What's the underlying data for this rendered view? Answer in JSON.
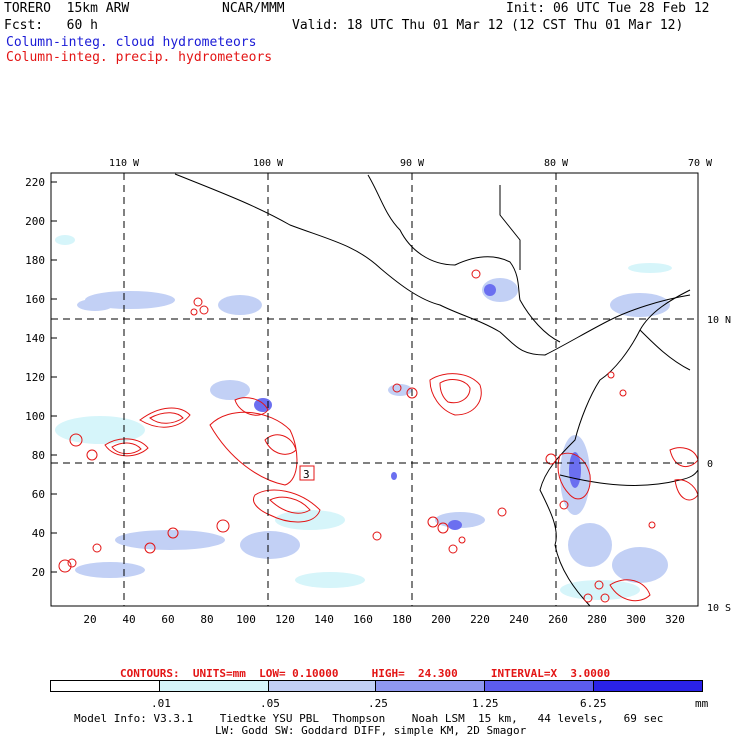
{
  "header": {
    "model": "TORERO  15km ARW",
    "org": "NCAR/MMM",
    "init": "Init: 06 UTC Tue 28 Feb 12",
    "fcst": "Fcst:   60 h",
    "valid": "Valid: 18 UTC Thu 01 Mar 12 (12 CST Thu 01 Mar 12)",
    "field1": "Column-integ. cloud hydrometeors",
    "field2": "Column-integ. precip. hydrometeors"
  },
  "axes": {
    "top_lon_labels": [
      "110 W",
      "100 W",
      "90 W",
      "80 W",
      "70 W"
    ],
    "right_lat_labels": [
      "10 N",
      "0",
      "10 S"
    ],
    "left_ticks": [
      "220",
      "200",
      "180",
      "160",
      "140",
      "120",
      "100",
      "80",
      "60",
      "40",
      "20"
    ],
    "bottom_ticks": [
      "20",
      "40",
      "60",
      "80",
      "100",
      "120",
      "140",
      "160",
      "180",
      "200",
      "220",
      "240",
      "260",
      "280",
      "300",
      "320"
    ]
  },
  "high_marker": "3",
  "contours_info": "CONTOURS:  UNITS=mm  LOW= 0.10000     HIGH=  24.300     INTERVAL=X  3.0000",
  "legend": {
    "labels": [
      ".01",
      ".05",
      ".25",
      "1.25",
      "6.25"
    ],
    "unit": "mm",
    "colors": [
      "#ffffff",
      "#d6f5fa",
      "#c2d0f5",
      "#9aa6f0",
      "#6b6ff0",
      "#3a36ea",
      "#1c14e6"
    ]
  },
  "footer": {
    "line1": "Model Info: V3.3.1    Tiedtke YSU PBL  Thompson    Noah LSM  15 km,   44 levels,   69 sec",
    "line2": "LW: Godd SW: Goddard DIFF, simple KM, 2D Smagor"
  }
}
